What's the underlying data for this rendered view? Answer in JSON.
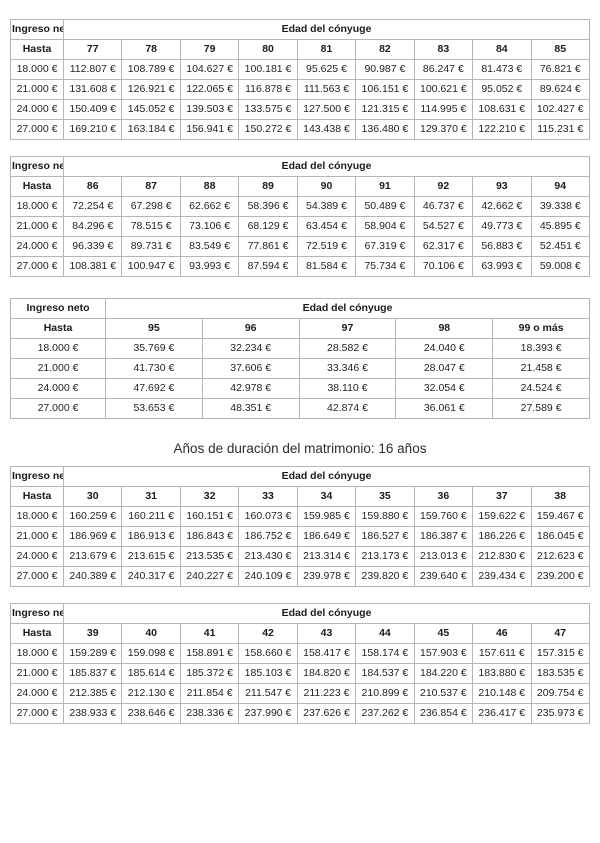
{
  "section_heading": "Años de duración del matrimonio: 16 años",
  "column_labels": {
    "income": "Ingreso neto",
    "spouse_age": "Edad del cónyuge",
    "up_to": "Hasta"
  },
  "tables": [
    {
      "ages": [
        "77",
        "78",
        "79",
        "80",
        "81",
        "82",
        "83",
        "84",
        "85"
      ],
      "rows": [
        {
          "income": "18.000 €",
          "values": [
            "112.807 €",
            "108.789 €",
            "104.627 €",
            "100.181 €",
            "95.625 €",
            "90.987 €",
            "86.247 €",
            "81.473 €",
            "76.821 €"
          ]
        },
        {
          "income": "21.000 €",
          "values": [
            "131.608 €",
            "126.921 €",
            "122.065 €",
            "116.878 €",
            "111.563 €",
            "106.151 €",
            "100.621 €",
            "95.052 €",
            "89.624 €"
          ]
        },
        {
          "income": "24.000 €",
          "values": [
            "150.409 €",
            "145.052 €",
            "139.503 €",
            "133.575 €",
            "127.500 €",
            "121.315 €",
            "114.995 €",
            "108.631 €",
            "102.427 €"
          ]
        },
        {
          "income": "27.000 €",
          "values": [
            "169.210 €",
            "163.184 €",
            "156.941 €",
            "150.272 €",
            "143.438 €",
            "136.480 €",
            "129.370 €",
            "122.210 €",
            "115.231 €"
          ]
        }
      ]
    },
    {
      "ages": [
        "86",
        "87",
        "88",
        "89",
        "90",
        "91",
        "92",
        "93",
        "94"
      ],
      "rows": [
        {
          "income": "18.000 €",
          "values": [
            "72.254 €",
            "67.298 €",
            "62.662 €",
            "58.396 €",
            "54.389 €",
            "50.489 €",
            "46.737 €",
            "42.662 €",
            "39.338 €"
          ]
        },
        {
          "income": "21.000 €",
          "values": [
            "84.296 €",
            "78.515 €",
            "73.106 €",
            "68.129 €",
            "63.454 €",
            "58.904 €",
            "54.527 €",
            "49.773 €",
            "45.895 €"
          ]
        },
        {
          "income": "24.000 €",
          "values": [
            "96.339 €",
            "89.731 €",
            "83.549 €",
            "77.861 €",
            "72.519 €",
            "67.319 €",
            "62.317 €",
            "56.883 €",
            "52.451 €"
          ]
        },
        {
          "income": "27.000 €",
          "values": [
            "108.381 €",
            "100.947 €",
            "93.993 €",
            "87.594 €",
            "81.584 €",
            "75.734 €",
            "70.106 €",
            "63.993 €",
            "59.008 €"
          ]
        }
      ]
    },
    {
      "ages": [
        "95",
        "96",
        "97",
        "98",
        "99 o más"
      ],
      "rows": [
        {
          "income": "18.000 €",
          "values": [
            "35.769 €",
            "32.234 €",
            "28.582 €",
            "24.040 €",
            "18.393 €"
          ]
        },
        {
          "income": "21.000 €",
          "values": [
            "41.730 €",
            "37.606 €",
            "33.346 €",
            "28.047 €",
            "21.458 €"
          ]
        },
        {
          "income": "24.000 €",
          "values": [
            "47.692 €",
            "42.978 €",
            "38.110 €",
            "32.054 €",
            "24.524 €"
          ]
        },
        {
          "income": "27.000 €",
          "values": [
            "53.653 €",
            "48.351 €",
            "42.874 €",
            "36.061 €",
            "27.589 €"
          ]
        }
      ]
    },
    {
      "ages": [
        "30",
        "31",
        "32",
        "33",
        "34",
        "35",
        "36",
        "37",
        "38"
      ],
      "rows": [
        {
          "income": "18.000 €",
          "values": [
            "160.259 €",
            "160.211 €",
            "160.151 €",
            "160.073 €",
            "159.985 €",
            "159.880 €",
            "159.760 €",
            "159.622 €",
            "159.467 €"
          ]
        },
        {
          "income": "21.000 €",
          "values": [
            "186.969 €",
            "186.913 €",
            "186.843 €",
            "186.752 €",
            "186.649 €",
            "186.527 €",
            "186.387 €",
            "186.226 €",
            "186.045 €"
          ]
        },
        {
          "income": "24.000 €",
          "values": [
            "213.679 €",
            "213.615 €",
            "213.535 €",
            "213.430 €",
            "213.314 €",
            "213.173 €",
            "213.013 €",
            "212.830 €",
            "212.623 €"
          ]
        },
        {
          "income": "27.000 €",
          "values": [
            "240.389 €",
            "240.317 €",
            "240.227 €",
            "240.109 €",
            "239.978 €",
            "239.820 €",
            "239.640 €",
            "239.434 €",
            "239.200 €"
          ]
        }
      ]
    },
    {
      "ages": [
        "39",
        "40",
        "41",
        "42",
        "43",
        "44",
        "45",
        "46",
        "47"
      ],
      "rows": [
        {
          "income": "18.000 €",
          "values": [
            "159.289 €",
            "159.098 €",
            "158.891 €",
            "158.660 €",
            "158.417 €",
            "158.174 €",
            "157.903 €",
            "157.611 €",
            "157.315 €"
          ]
        },
        {
          "income": "21.000 €",
          "values": [
            "185.837 €",
            "185.614 €",
            "185.372 €",
            "185.103 €",
            "184.820 €",
            "184.537 €",
            "184.220 €",
            "183.880 €",
            "183.535 €"
          ]
        },
        {
          "income": "24.000 €",
          "values": [
            "212.385 €",
            "212.130 €",
            "211.854 €",
            "211.547 €",
            "211.223 €",
            "210.899 €",
            "210.537 €",
            "210.148 €",
            "209.754 €"
          ]
        },
        {
          "income": "27.000 €",
          "values": [
            "238.933 €",
            "238.646 €",
            "238.336 €",
            "237.990 €",
            "237.626 €",
            "237.262 €",
            "236.854 €",
            "236.417 €",
            "235.973 €"
          ]
        }
      ]
    }
  ]
}
